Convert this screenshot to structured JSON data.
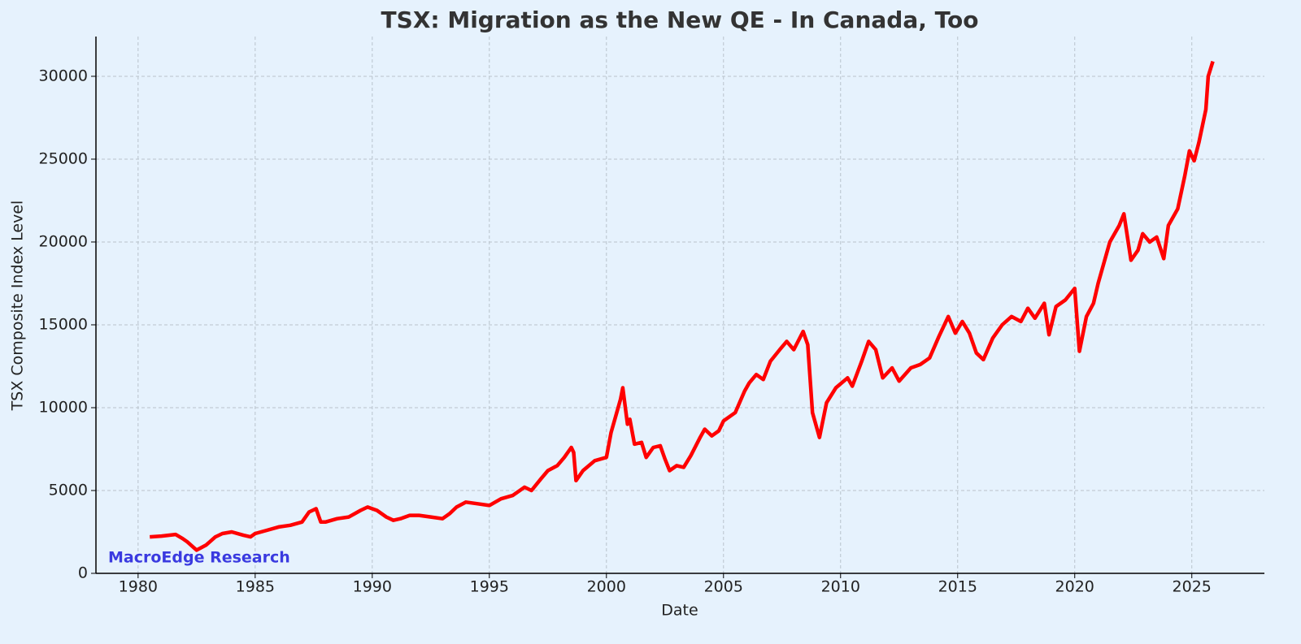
{
  "chart_data": {
    "type": "line",
    "title": "TSX: Migration as the New QE - In Canada, Too",
    "xlabel": "Date",
    "ylabel": "TSX Composite Index Level",
    "annotation": "MacroEdge Research",
    "xlim": [
      1978.2,
      2028.1
    ],
    "ylim": [
      0,
      32400
    ],
    "xticks": [
      1980,
      1985,
      1990,
      1995,
      2000,
      2005,
      2010,
      2015,
      2020,
      2025
    ],
    "yticks": [
      0,
      5000,
      10000,
      15000,
      20000,
      25000,
      30000
    ],
    "grid": true,
    "series": [
      {
        "color": "#ff0000",
        "x": [
          1980.5,
          1981,
          1981.3,
          1981.6,
          1981.9,
          1982.1,
          1982.5,
          1982.9,
          1983.3,
          1983.6,
          1984,
          1984.5,
          1984.8,
          1985,
          1985.5,
          1986,
          1986.5,
          1987,
          1987.3,
          1987.6,
          1987.8,
          1988,
          1988.5,
          1989,
          1989.5,
          1989.8,
          1990.2,
          1990.6,
          1990.9,
          1991.2,
          1991.6,
          1992,
          1992.5,
          1993,
          1993.3,
          1993.6,
          1994,
          1994.5,
          1995,
          1995.5,
          1996,
          1996.5,
          1996.8,
          1997.2,
          1997.5,
          1997.9,
          1998.2,
          1998.5,
          1998.6,
          1998.7,
          1999,
          1999.5,
          2000,
          2000.2,
          2000.4,
          2000.6,
          2000.7,
          2000.9,
          2001,
          2001.2,
          2001.5,
          2001.7,
          2002,
          2002.3,
          2002.5,
          2002.7,
          2003,
          2003.3,
          2003.6,
          2004,
          2004.2,
          2004.5,
          2004.8,
          2005,
          2005.5,
          2005.9,
          2006.1,
          2006.4,
          2006.7,
          2007,
          2007.4,
          2007.7,
          2008,
          2008.4,
          2008.6,
          2008.8,
          2009.1,
          2009.4,
          2009.8,
          2010.3,
          2010.5,
          2010.9,
          2011.2,
          2011.5,
          2011.8,
          2012.2,
          2012.5,
          2013,
          2013.4,
          2013.8,
          2014.2,
          2014.6,
          2014.9,
          2015.2,
          2015.5,
          2015.8,
          2016.1,
          2016.5,
          2016.9,
          2017.3,
          2017.7,
          2018,
          2018.3,
          2018.7,
          2018.9,
          2019.2,
          2019.6,
          2020,
          2020.2,
          2020.5,
          2020.8,
          2021,
          2021.5,
          2021.9,
          2022.1,
          2022.4,
          2022.7,
          2022.9,
          2023.2,
          2023.5,
          2023.8,
          2024,
          2024.4,
          2024.7,
          2024.9,
          2025.1,
          2025.3,
          2025.6,
          2025.7,
          2025.9
        ],
        "values": [
          2200,
          2250,
          2300,
          2350,
          2100,
          1900,
          1400,
          1700,
          2200,
          2400,
          2500,
          2300,
          2200,
          2400,
          2600,
          2800,
          2900,
          3100,
          3700,
          3900,
          3100,
          3100,
          3300,
          3400,
          3800,
          4000,
          3800,
          3400,
          3200,
          3300,
          3500,
          3500,
          3400,
          3300,
          3600,
          4000,
          4300,
          4200,
          4100,
          4500,
          4700,
          5200,
          5000,
          5700,
          6200,
          6500,
          7000,
          7600,
          7300,
          5600,
          6200,
          6800,
          7000,
          8500,
          9500,
          10500,
          11200,
          9000,
          9300,
          7800,
          7900,
          7000,
          7600,
          7700,
          6900,
          6200,
          6500,
          6400,
          7100,
          8200,
          8700,
          8300,
          8600,
          9200,
          9700,
          11000,
          11500,
          12000,
          11700,
          12800,
          13500,
          14000,
          13500,
          14600,
          13800,
          9700,
          8200,
          10300,
          11200,
          11800,
          11300,
          12800,
          14000,
          13500,
          11800,
          12400,
          11600,
          12400,
          12600,
          13000,
          14300,
          15500,
          14500,
          15200,
          14500,
          13300,
          12900,
          14200,
          15000,
          15500,
          15200,
          16000,
          15400,
          16300,
          14400,
          16100,
          16500,
          17200,
          13400,
          15500,
          16300,
          17500,
          20000,
          21000,
          21700,
          18900,
          19500,
          20500,
          20000,
          20300,
          19000,
          21000,
          22000,
          24000,
          25500,
          24900,
          26000,
          28000,
          30000,
          30900
        ]
      }
    ]
  }
}
